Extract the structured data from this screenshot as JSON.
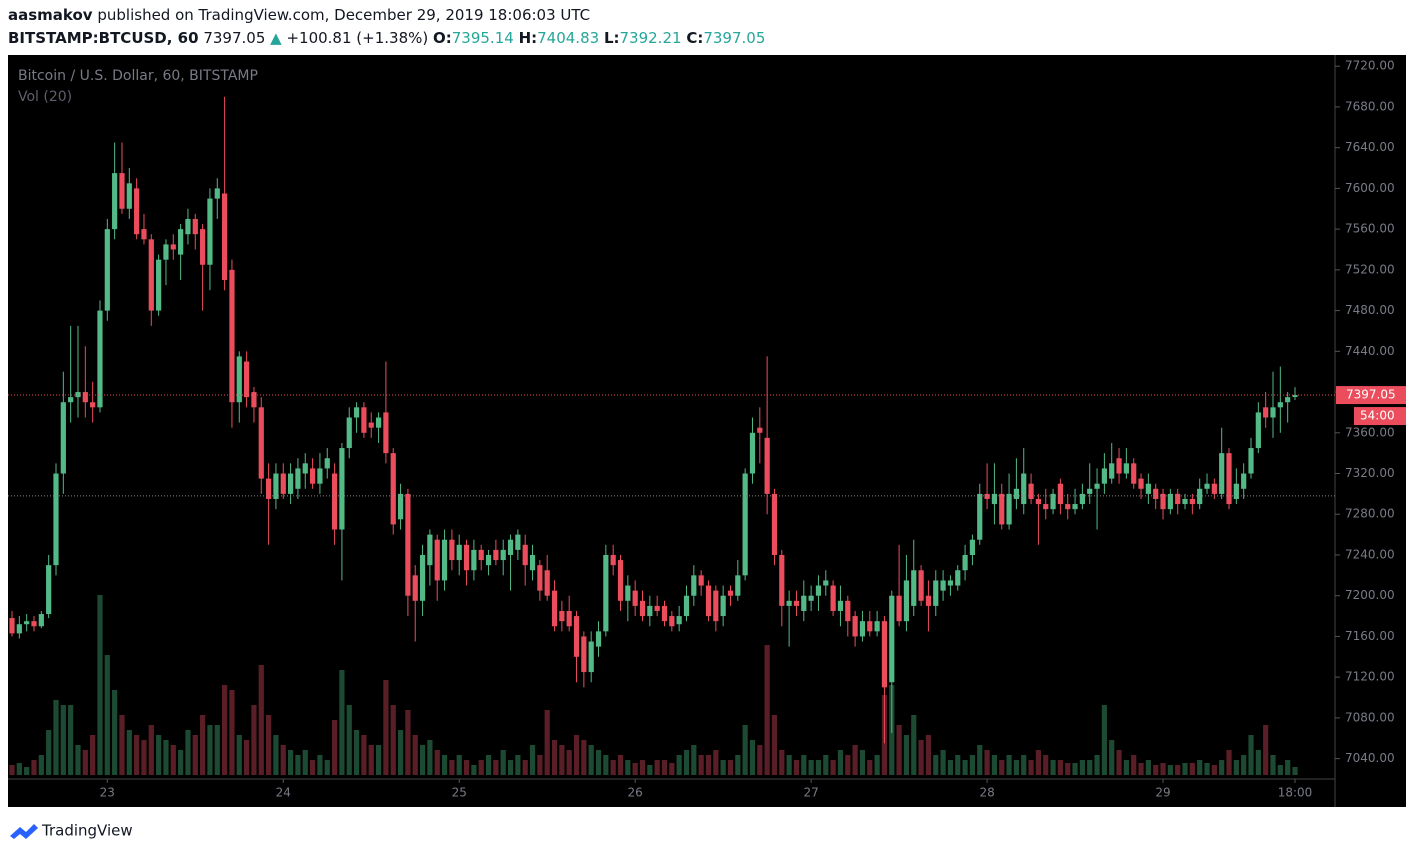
{
  "header": {
    "author": "aasmakov",
    "published": "published on TradingView.com, December 29, 2019 18:06:03 UTC",
    "symbol": "BITSTAMP:BTCUSD, 60",
    "last": "7397.05",
    "arrow": "▲",
    "change": "+100.81 (+1.38%)",
    "open_label": "O:",
    "open": "7395.14",
    "high_label": "H:",
    "high": "7404.83",
    "low_label": "L:",
    "low": "7392.21",
    "close_label": "C:",
    "close": "7397.05"
  },
  "footer": {
    "brand": "TradingView"
  },
  "chart_data": {
    "type": "candlestick",
    "title": "Bitcoin / U.S. Dollar, 60, BITSTAMP",
    "indicator": "Vol (20)",
    "up_color": "#53b987",
    "down_color": "#eb4d5c",
    "volume_up_color": "#1d4a33",
    "volume_down_color": "#5a1f26",
    "last_price": 7397.05,
    "countdown": "54:00",
    "reference_line": 7298,
    "grid": false,
    "ylim": [
      7020,
      7731
    ],
    "yticks": [
      {
        "value": 7040,
        "label": "7040.00"
      },
      {
        "value": 7080,
        "label": "7080.00"
      },
      {
        "value": 7120,
        "label": "7120.00"
      },
      {
        "value": 7160,
        "label": "7160.00"
      },
      {
        "value": 7200,
        "label": "7200.00"
      },
      {
        "value": 7240,
        "label": "7240.00"
      },
      {
        "value": 7280,
        "label": "7280.00"
      },
      {
        "value": 7320,
        "label": "7320.00"
      },
      {
        "value": 7360,
        "label": "7360.00"
      },
      {
        "value": 7400,
        "label": "7400.00"
      },
      {
        "value": 7440,
        "label": "7440.00"
      },
      {
        "value": 7480,
        "label": "7480.00"
      },
      {
        "value": 7520,
        "label": "7520.00"
      },
      {
        "value": 7560,
        "label": "7560.00"
      },
      {
        "value": 7600,
        "label": "7600.00"
      },
      {
        "value": 7640,
        "label": "7640.00"
      },
      {
        "value": 7680,
        "label": "7680.00"
      },
      {
        "value": 7720,
        "label": "7720.00"
      }
    ],
    "categories": [
      null,
      null,
      null,
      null,
      null,
      null,
      null,
      null,
      null,
      null,
      null,
      null,
      null,
      "23",
      null,
      null,
      null,
      null,
      null,
      null,
      null,
      null,
      null,
      null,
      null,
      null,
      null,
      null,
      null,
      null,
      null,
      null,
      null,
      null,
      null,
      null,
      null,
      "24",
      null,
      null,
      null,
      null,
      null,
      null,
      null,
      null,
      null,
      null,
      null,
      null,
      null,
      null,
      null,
      null,
      null,
      null,
      null,
      null,
      null,
      null,
      null,
      "25",
      null,
      null,
      null,
      null,
      null,
      null,
      null,
      null,
      null,
      null,
      null,
      null,
      null,
      null,
      null,
      null,
      null,
      null,
      null,
      null,
      null,
      null,
      null,
      "26",
      null,
      null,
      null,
      null,
      null,
      null,
      null,
      null,
      null,
      null,
      null,
      null,
      null,
      null,
      null,
      null,
      null,
      null,
      null,
      null,
      null,
      null,
      null,
      "27",
      null,
      null,
      null,
      null,
      null,
      null,
      null,
      null,
      null,
      null,
      null,
      null,
      null,
      null,
      null,
      null,
      null,
      null,
      null,
      null,
      null,
      null,
      null,
      "28",
      null,
      null,
      null,
      null,
      null,
      null,
      null,
      null,
      null,
      null,
      null,
      null,
      null,
      null,
      null,
      null,
      null,
      null,
      null,
      null,
      null,
      null,
      null,
      "29",
      null,
      null,
      null,
      null,
      null,
      null,
      null,
      null,
      null,
      null,
      null,
      null,
      null,
      null,
      null,
      null,
      null,
      "18:00"
    ],
    "ohlc": [
      [
        7178,
        7185,
        7160,
        7163
      ],
      [
        7163,
        7180,
        7158,
        7172
      ],
      [
        7172,
        7182,
        7165,
        7175
      ],
      [
        7175,
        7180,
        7165,
        7170
      ],
      [
        7170,
        7185,
        7168,
        7182
      ],
      [
        7182,
        7240,
        7178,
        7230
      ],
      [
        7230,
        7330,
        7220,
        7320
      ],
      [
        7320,
        7420,
        7300,
        7390
      ],
      [
        7390,
        7465,
        7370,
        7395
      ],
      [
        7395,
        7465,
        7375,
        7400
      ],
      [
        7400,
        7445,
        7375,
        7390
      ],
      [
        7390,
        7410,
        7370,
        7385
      ],
      [
        7385,
        7490,
        7380,
        7480
      ],
      [
        7480,
        7570,
        7470,
        7560
      ],
      [
        7560,
        7645,
        7550,
        7615
      ],
      [
        7615,
        7645,
        7575,
        7580
      ],
      [
        7580,
        7620,
        7570,
        7605
      ],
      [
        7600,
        7610,
        7550,
        7555
      ],
      [
        7560,
        7575,
        7545,
        7550
      ],
      [
        7550,
        7555,
        7465,
        7480
      ],
      [
        7480,
        7535,
        7475,
        7530
      ],
      [
        7530,
        7550,
        7505,
        7545
      ],
      [
        7545,
        7555,
        7530,
        7540
      ],
      [
        7535,
        7565,
        7510,
        7560
      ],
      [
        7555,
        7580,
        7545,
        7570
      ],
      [
        7570,
        7575,
        7540,
        7555
      ],
      [
        7560,
        7565,
        7480,
        7525
      ],
      [
        7525,
        7600,
        7500,
        7590
      ],
      [
        7590,
        7610,
        7570,
        7600
      ],
      [
        7595,
        7690,
        7500,
        7510
      ],
      [
        7520,
        7530,
        7365,
        7390
      ],
      [
        7390,
        7440,
        7370,
        7435
      ],
      [
        7430,
        7440,
        7385,
        7395
      ],
      [
        7400,
        7405,
        7370,
        7385
      ],
      [
        7385,
        7395,
        7300,
        7315
      ],
      [
        7315,
        7330,
        7250,
        7295
      ],
      [
        7295,
        7330,
        7285,
        7320
      ],
      [
        7320,
        7330,
        7295,
        7300
      ],
      [
        7300,
        7330,
        7290,
        7320
      ],
      [
        7305,
        7335,
        7295,
        7325
      ],
      [
        7320,
        7340,
        7305,
        7330
      ],
      [
        7325,
        7335,
        7305,
        7310
      ],
      [
        7310,
        7340,
        7300,
        7325
      ],
      [
        7325,
        7345,
        7315,
        7335
      ],
      [
        7320,
        7330,
        7250,
        7265
      ],
      [
        7265,
        7350,
        7215,
        7345
      ],
      [
        7345,
        7385,
        7335,
        7375
      ],
      [
        7375,
        7390,
        7360,
        7385
      ],
      [
        7385,
        7390,
        7355,
        7360
      ],
      [
        7370,
        7380,
        7355,
        7365
      ],
      [
        7365,
        7380,
        7350,
        7375
      ],
      [
        7380,
        7430,
        7330,
        7340
      ],
      [
        7340,
        7345,
        7260,
        7270
      ],
      [
        7275,
        7310,
        7265,
        7300
      ],
      [
        7300,
        7305,
        7180,
        7200
      ],
      [
        7220,
        7230,
        7155,
        7195
      ],
      [
        7195,
        7250,
        7180,
        7240
      ],
      [
        7230,
        7265,
        7210,
        7260
      ],
      [
        7255,
        7260,
        7195,
        7215
      ],
      [
        7215,
        7265,
        7205,
        7255
      ],
      [
        7255,
        7265,
        7225,
        7235
      ],
      [
        7235,
        7260,
        7220,
        7250
      ],
      [
        7250,
        7255,
        7210,
        7225
      ],
      [
        7225,
        7255,
        7215,
        7245
      ],
      [
        7245,
        7250,
        7225,
        7235
      ],
      [
        7230,
        7245,
        7220,
        7240
      ],
      [
        7245,
        7255,
        7230,
        7235
      ],
      [
        7235,
        7255,
        7220,
        7245
      ],
      [
        7240,
        7260,
        7205,
        7255
      ],
      [
        7245,
        7265,
        7235,
        7260
      ],
      [
        7250,
        7260,
        7210,
        7230
      ],
      [
        7225,
        7250,
        7215,
        7240
      ],
      [
        7230,
        7235,
        7195,
        7205
      ],
      [
        7225,
        7240,
        7195,
        7200
      ],
      [
        7205,
        7215,
        7165,
        7170
      ],
      [
        7185,
        7195,
        7165,
        7175
      ],
      [
        7185,
        7200,
        7165,
        7170
      ],
      [
        7180,
        7185,
        7115,
        7140
      ],
      [
        7160,
        7165,
        7110,
        7125
      ],
      [
        7125,
        7165,
        7115,
        7155
      ],
      [
        7150,
        7175,
        7140,
        7165
      ],
      [
        7165,
        7250,
        7160,
        7240
      ],
      [
        7240,
        7250,
        7220,
        7230
      ],
      [
        7235,
        7240,
        7185,
        7195
      ],
      [
        7195,
        7220,
        7175,
        7210
      ],
      [
        7205,
        7215,
        7180,
        7190
      ],
      [
        7195,
        7205,
        7175,
        7180
      ],
      [
        7180,
        7200,
        7170,
        7190
      ],
      [
        7190,
        7200,
        7180,
        7185
      ],
      [
        7190,
        7195,
        7170,
        7175
      ],
      [
        7180,
        7185,
        7165,
        7170
      ],
      [
        7172,
        7190,
        7165,
        7180
      ],
      [
        7180,
        7210,
        7175,
        7200
      ],
      [
        7200,
        7230,
        7190,
        7220
      ],
      [
        7220,
        7225,
        7200,
        7210
      ],
      [
        7210,
        7215,
        7175,
        7180
      ],
      [
        7205,
        7210,
        7165,
        7175
      ],
      [
        7180,
        7210,
        7170,
        7200
      ],
      [
        7205,
        7210,
        7190,
        7200
      ],
      [
        7200,
        7235,
        7195,
        7220
      ],
      [
        7220,
        7325,
        7215,
        7320
      ],
      [
        7320,
        7375,
        7310,
        7360
      ],
      [
        7365,
        7385,
        7330,
        7360
      ],
      [
        7355,
        7435,
        7280,
        7300
      ],
      [
        7300,
        7305,
        7230,
        7240
      ],
      [
        7240,
        7245,
        7170,
        7190
      ],
      [
        7190,
        7205,
        7150,
        7195
      ],
      [
        7195,
        7205,
        7180,
        7190
      ],
      [
        7185,
        7215,
        7175,
        7200
      ],
      [
        7195,
        7210,
        7185,
        7200
      ],
      [
        7200,
        7220,
        7185,
        7210
      ],
      [
        7210,
        7225,
        7200,
        7215
      ],
      [
        7210,
        7215,
        7180,
        7185
      ],
      [
        7185,
        7210,
        7170,
        7195
      ],
      [
        7195,
        7200,
        7160,
        7175
      ],
      [
        7180,
        7185,
        7150,
        7160
      ],
      [
        7160,
        7185,
        7155,
        7175
      ],
      [
        7175,
        7185,
        7160,
        7165
      ],
      [
        7165,
        7185,
        7160,
        7175
      ],
      [
        7175,
        7180,
        7055,
        7110
      ],
      [
        7115,
        7205,
        7065,
        7200
      ],
      [
        7200,
        7250,
        7170,
        7175
      ],
      [
        7175,
        7240,
        7165,
        7215
      ],
      [
        7190,
        7255,
        7180,
        7225
      ],
      [
        7225,
        7230,
        7190,
        7195
      ],
      [
        7200,
        7215,
        7165,
        7190
      ],
      [
        7190,
        7225,
        7180,
        7215
      ],
      [
        7205,
        7225,
        7195,
        7215
      ],
      [
        7210,
        7220,
        7200,
        7215
      ],
      [
        7210,
        7230,
        7205,
        7225
      ],
      [
        7225,
        7250,
        7215,
        7240
      ],
      [
        7240,
        7260,
        7230,
        7255
      ],
      [
        7255,
        7310,
        7250,
        7300
      ],
      [
        7300,
        7330,
        7285,
        7295
      ],
      [
        7290,
        7330,
        7270,
        7300
      ],
      [
        7300,
        7310,
        7265,
        7270
      ],
      [
        7270,
        7320,
        7265,
        7300
      ],
      [
        7295,
        7335,
        7285,
        7305
      ],
      [
        7290,
        7345,
        7280,
        7320
      ],
      [
        7310,
        7320,
        7290,
        7295
      ],
      [
        7295,
        7300,
        7250,
        7290
      ],
      [
        7290,
        7305,
        7275,
        7285
      ],
      [
        7285,
        7305,
        7280,
        7300
      ],
      [
        7310,
        7315,
        7280,
        7290
      ],
      [
        7290,
        7300,
        7275,
        7285
      ],
      [
        7285,
        7305,
        7280,
        7290
      ],
      [
        7290,
        7310,
        7285,
        7300
      ],
      [
        7300,
        7330,
        7290,
        7305
      ],
      [
        7305,
        7325,
        7265,
        7310
      ],
      [
        7310,
        7340,
        7300,
        7325
      ],
      [
        7315,
        7350,
        7310,
        7330
      ],
      [
        7335,
        7345,
        7310,
        7320
      ],
      [
        7320,
        7345,
        7315,
        7330
      ],
      [
        7330,
        7335,
        7305,
        7310
      ],
      [
        7315,
        7320,
        7295,
        7305
      ],
      [
        7300,
        7320,
        7290,
        7310
      ],
      [
        7305,
        7310,
        7285,
        7295
      ],
      [
        7300,
        7305,
        7275,
        7285
      ],
      [
        7285,
        7305,
        7280,
        7300
      ],
      [
        7300,
        7305,
        7280,
        7290
      ],
      [
        7290,
        7300,
        7285,
        7295
      ],
      [
        7295,
        7300,
        7280,
        7290
      ],
      [
        7290,
        7315,
        7285,
        7305
      ],
      [
        7305,
        7320,
        7300,
        7310
      ],
      [
        7310,
        7315,
        7295,
        7300
      ],
      [
        7300,
        7365,
        7295,
        7340
      ],
      [
        7340,
        7345,
        7285,
        7290
      ],
      [
        7295,
        7325,
        7290,
        7310
      ],
      [
        7305,
        7330,
        7295,
        7320
      ],
      [
        7320,
        7355,
        7315,
        7345
      ],
      [
        7345,
        7390,
        7340,
        7380
      ],
      [
        7385,
        7400,
        7365,
        7375
      ],
      [
        7375,
        7420,
        7355,
        7385
      ],
      [
        7385,
        7425,
        7360,
        7390
      ],
      [
        7390,
        7400,
        7370,
        7395
      ],
      [
        7395.14,
        7404.83,
        7392.21,
        7397.05
      ]
    ],
    "volume": [
      10,
      12,
      8,
      15,
      20,
      45,
      75,
      70,
      70,
      30,
      25,
      40,
      180,
      120,
      85,
      60,
      45,
      40,
      35,
      50,
      40,
      35,
      30,
      25,
      45,
      40,
      60,
      50,
      50,
      90,
      85,
      40,
      35,
      70,
      110,
      60,
      40,
      30,
      25,
      20,
      25,
      15,
      20,
      15,
      55,
      105,
      70,
      45,
      40,
      30,
      30,
      95,
      70,
      45,
      65,
      40,
      30,
      35,
      25,
      20,
      15,
      20,
      15,
      10,
      15,
      20,
      15,
      25,
      15,
      20,
      15,
      30,
      20,
      65,
      35,
      30,
      25,
      40,
      35,
      30,
      25,
      20,
      15,
      20,
      15,
      12,
      15,
      10,
      15,
      15,
      12,
      20,
      25,
      30,
      20,
      20,
      25,
      15,
      15,
      20,
      50,
      35,
      30,
      130,
      60,
      25,
      20,
      15,
      20,
      15,
      15,
      20,
      15,
      25,
      20,
      30,
      25,
      15,
      20,
      80,
      90,
      50,
      40,
      60,
      35,
      40,
      20,
      25,
      15,
      20,
      15,
      20,
      30,
      25,
      20,
      15,
      20,
      15,
      20,
      15,
      25,
      20,
      15,
      15,
      12,
      12,
      15,
      15,
      20,
      70,
      35,
      25,
      15,
      20,
      12,
      15,
      10,
      12,
      10,
      10,
      12,
      12,
      15,
      12,
      10,
      15,
      25,
      15,
      20,
      40,
      25,
      50,
      20,
      10,
      15,
      8
    ]
  }
}
